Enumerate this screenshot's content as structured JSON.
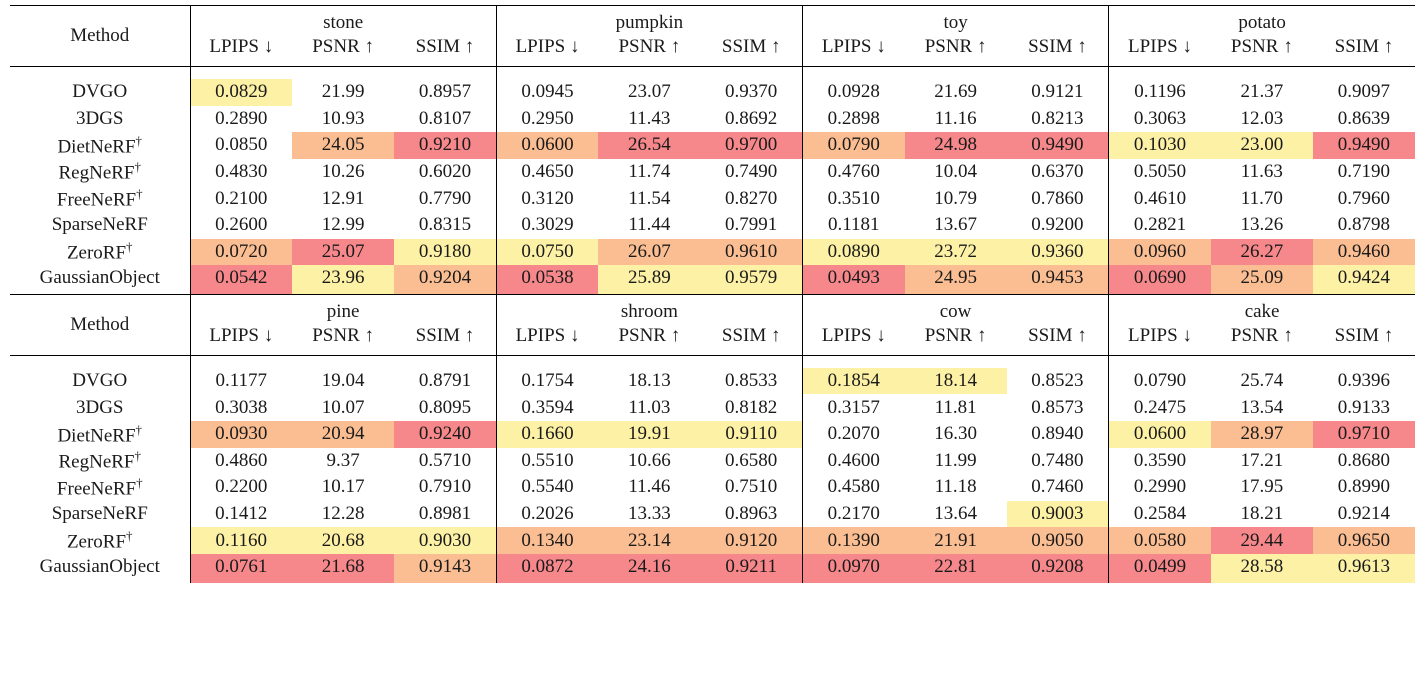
{
  "table": {
    "method_header": "Method",
    "colors": {
      "first": "#f6878a",
      "second": "#fbbe92",
      "third": "#fdf1a6"
    },
    "blocks": [
      {
        "groups": [
          "stone",
          "pumpkin",
          "toy",
          "potato"
        ],
        "metrics": [
          "LPIPS ↓",
          "PSNR ↑",
          "SSIM ↑",
          "LPIPS ↓",
          "PSNR ↑",
          "SSIM ↑",
          "LPIPS ↓",
          "PSNR ↑",
          "SSIM ↑",
          "LPIPS ↓",
          "PSNR ↑",
          "SSIM ↑"
        ],
        "rows": [
          {
            "method": "DVGO",
            "dagger": false,
            "values": [
              "0.0829",
              "21.99",
              "0.8957",
              "0.0945",
              "23.07",
              "0.9370",
              "0.0928",
              "21.69",
              "0.9121",
              "0.1196",
              "21.37",
              "0.9097"
            ],
            "ranks": [
              3,
              0,
              0,
              0,
              0,
              0,
              0,
              0,
              0,
              0,
              0,
              0
            ]
          },
          {
            "method": "3DGS",
            "dagger": false,
            "values": [
              "0.2890",
              "10.93",
              "0.8107",
              "0.2950",
              "11.43",
              "0.8692",
              "0.2898",
              "11.16",
              "0.8213",
              "0.3063",
              "12.03",
              "0.8639"
            ],
            "ranks": [
              0,
              0,
              0,
              0,
              0,
              0,
              0,
              0,
              0,
              0,
              0,
              0
            ]
          },
          {
            "method": "DietNeRF",
            "dagger": true,
            "values": [
              "0.0850",
              "24.05",
              "0.9210",
              "0.0600",
              "26.54",
              "0.9700",
              "0.0790",
              "24.98",
              "0.9490",
              "0.1030",
              "23.00",
              "0.9490"
            ],
            "ranks": [
              0,
              2,
              1,
              2,
              1,
              1,
              2,
              1,
              1,
              3,
              3,
              1
            ]
          },
          {
            "method": "RegNeRF",
            "dagger": true,
            "values": [
              "0.4830",
              "10.26",
              "0.6020",
              "0.4650",
              "11.74",
              "0.7490",
              "0.4760",
              "10.04",
              "0.6370",
              "0.5050",
              "11.63",
              "0.7190"
            ],
            "ranks": [
              0,
              0,
              0,
              0,
              0,
              0,
              0,
              0,
              0,
              0,
              0,
              0
            ]
          },
          {
            "method": "FreeNeRF",
            "dagger": true,
            "values": [
              "0.2100",
              "12.91",
              "0.7790",
              "0.3120",
              "11.54",
              "0.8270",
              "0.3510",
              "10.79",
              "0.7860",
              "0.4610",
              "11.70",
              "0.7960"
            ],
            "ranks": [
              0,
              0,
              0,
              0,
              0,
              0,
              0,
              0,
              0,
              0,
              0,
              0
            ]
          },
          {
            "method": "SparseNeRF",
            "dagger": false,
            "values": [
              "0.2600",
              "12.99",
              "0.8315",
              "0.3029",
              "11.44",
              "0.7991",
              "0.1181",
              "13.67",
              "0.9200",
              "0.2821",
              "13.26",
              "0.8798"
            ],
            "ranks": [
              0,
              0,
              0,
              0,
              0,
              0,
              0,
              0,
              0,
              0,
              0,
              0
            ]
          },
          {
            "method": "ZeroRF",
            "dagger": true,
            "values": [
              "0.0720",
              "25.07",
              "0.9180",
              "0.0750",
              "26.07",
              "0.9610",
              "0.0890",
              "23.72",
              "0.9360",
              "0.0960",
              "26.27",
              "0.9460"
            ],
            "ranks": [
              2,
              1,
              3,
              3,
              2,
              2,
              3,
              3,
              3,
              2,
              1,
              2
            ]
          },
          {
            "method": "GaussianObject",
            "dagger": false,
            "values": [
              "0.0542",
              "23.96",
              "0.9204",
              "0.0538",
              "25.89",
              "0.9579",
              "0.0493",
              "24.95",
              "0.9453",
              "0.0690",
              "25.09",
              "0.9424"
            ],
            "ranks": [
              1,
              3,
              2,
              1,
              3,
              3,
              1,
              2,
              2,
              1,
              2,
              3
            ]
          }
        ]
      },
      {
        "groups": [
          "pine",
          "shroom",
          "cow",
          "cake"
        ],
        "metrics": [
          "LPIPS ↓",
          "PSNR ↑",
          "SSIM ↑",
          "LPIPS ↓",
          "PSNR ↑",
          "SSIM ↑",
          "LPIPS ↓",
          "PSNR ↑",
          "SSIM ↑",
          "LPIPS ↓",
          "PSNR ↑",
          "SSIM ↑"
        ],
        "rows": [
          {
            "method": "DVGO",
            "dagger": false,
            "values": [
              "0.1177",
              "19.04",
              "0.8791",
              "0.1754",
              "18.13",
              "0.8533",
              "0.1854",
              "18.14",
              "0.8523",
              "0.0790",
              "25.74",
              "0.9396"
            ],
            "ranks": [
              0,
              0,
              0,
              0,
              0,
              0,
              3,
              3,
              0,
              0,
              0,
              0
            ]
          },
          {
            "method": "3DGS",
            "dagger": false,
            "values": [
              "0.3038",
              "10.07",
              "0.8095",
              "0.3594",
              "11.03",
              "0.8182",
              "0.3157",
              "11.81",
              "0.8573",
              "0.2475",
              "13.54",
              "0.9133"
            ],
            "ranks": [
              0,
              0,
              0,
              0,
              0,
              0,
              0,
              0,
              0,
              0,
              0,
              0
            ]
          },
          {
            "method": "DietNeRF",
            "dagger": true,
            "values": [
              "0.0930",
              "20.94",
              "0.9240",
              "0.1660",
              "19.91",
              "0.9110",
              "0.2070",
              "16.30",
              "0.8940",
              "0.0600",
              "28.97",
              "0.9710"
            ],
            "ranks": [
              2,
              2,
              1,
              3,
              3,
              3,
              0,
              0,
              0,
              3,
              2,
              1
            ]
          },
          {
            "method": "RegNeRF",
            "dagger": true,
            "values": [
              "0.4860",
              "9.37",
              "0.5710",
              "0.5510",
              "10.66",
              "0.6580",
              "0.4600",
              "11.99",
              "0.7480",
              "0.3590",
              "17.21",
              "0.8680"
            ],
            "ranks": [
              0,
              0,
              0,
              0,
              0,
              0,
              0,
              0,
              0,
              0,
              0,
              0
            ]
          },
          {
            "method": "FreeNeRF",
            "dagger": true,
            "values": [
              "0.2200",
              "10.17",
              "0.7910",
              "0.5540",
              "11.46",
              "0.7510",
              "0.4580",
              "11.18",
              "0.7460",
              "0.2990",
              "17.95",
              "0.8990"
            ],
            "ranks": [
              0,
              0,
              0,
              0,
              0,
              0,
              0,
              0,
              0,
              0,
              0,
              0
            ]
          },
          {
            "method": "SparseNeRF",
            "dagger": false,
            "values": [
              "0.1412",
              "12.28",
              "0.8981",
              "0.2026",
              "13.33",
              "0.8963",
              "0.2170",
              "13.64",
              "0.9003",
              "0.2584",
              "18.21",
              "0.9214"
            ],
            "ranks": [
              0,
              0,
              0,
              0,
              0,
              0,
              0,
              0,
              3,
              0,
              0,
              0
            ]
          },
          {
            "method": "ZeroRF",
            "dagger": true,
            "values": [
              "0.1160",
              "20.68",
              "0.9030",
              "0.1340",
              "23.14",
              "0.9120",
              "0.1390",
              "21.91",
              "0.9050",
              "0.0580",
              "29.44",
              "0.9650"
            ],
            "ranks": [
              3,
              3,
              3,
              2,
              2,
              2,
              2,
              2,
              2,
              2,
              1,
              2
            ]
          },
          {
            "method": "GaussianObject",
            "dagger": false,
            "values": [
              "0.0761",
              "21.68",
              "0.9143",
              "0.0872",
              "24.16",
              "0.9211",
              "0.0970",
              "22.81",
              "0.9208",
              "0.0499",
              "28.58",
              "0.9613"
            ],
            "ranks": [
              1,
              1,
              2,
              1,
              1,
              1,
              1,
              1,
              1,
              1,
              3,
              3
            ]
          }
        ]
      }
    ]
  }
}
